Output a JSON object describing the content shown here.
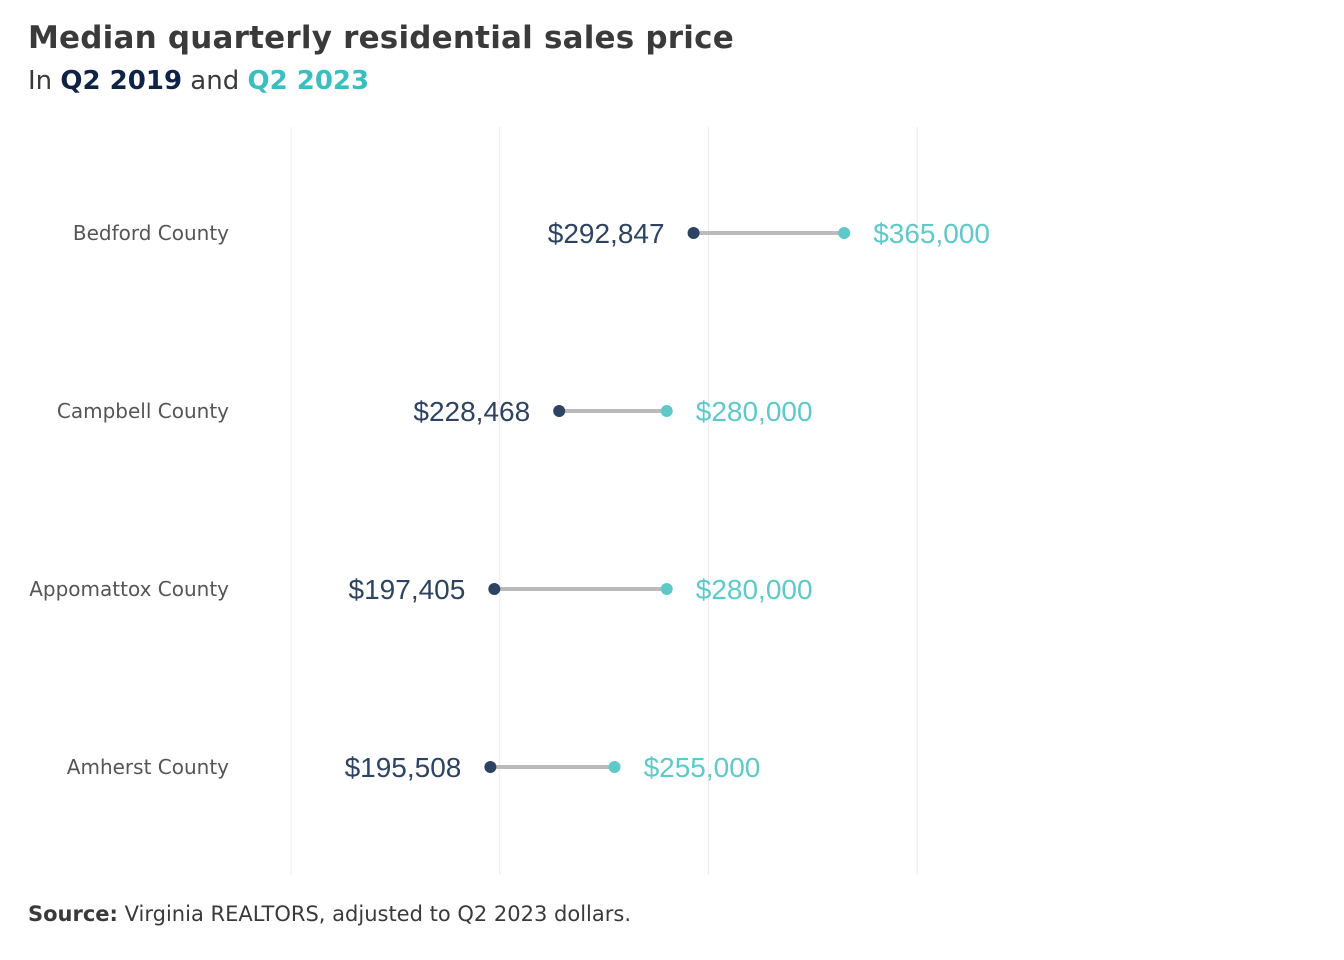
{
  "header": {
    "title": "Median quarterly residential sales price",
    "subtitle_prefix": "In",
    "subtitle_series1": "Q2 2019",
    "subtitle_join": "and",
    "subtitle_series2": "Q2 2023"
  },
  "footer": {
    "source_label": "Source:",
    "source_text": "Virginia REALTORS, adjusted to Q2 2023 dollars."
  },
  "colors": {
    "series_2019": "#2e4361",
    "series_2023": "#5ec9c8",
    "connector": "#bbbbbb",
    "gridline": "#ececec"
  },
  "chart_data": {
    "type": "dumbbell",
    "title": "Median quarterly residential sales price",
    "subtitle": "In Q2 2019 and Q2 2023",
    "categories": [
      "Bedford County",
      "Campbell County",
      "Appomattox County",
      "Amherst County"
    ],
    "series": [
      {
        "name": "Q2 2019",
        "values": [
          292847,
          228468,
          197405,
          195508
        ],
        "labels": [
          "$292,847",
          "$228,468",
          "$197,405",
          "$195,508"
        ]
      },
      {
        "name": "Q2 2023",
        "values": [
          365000,
          280000,
          280000,
          255000
        ],
        "labels": [
          "$365,000",
          "$280,000",
          "$280,000",
          "$255,000"
        ]
      }
    ],
    "xlim": [
      100000,
      500000
    ],
    "grid_x": [
      100000,
      200000,
      300000,
      400000
    ],
    "grid": true,
    "legend": "subtitle"
  }
}
